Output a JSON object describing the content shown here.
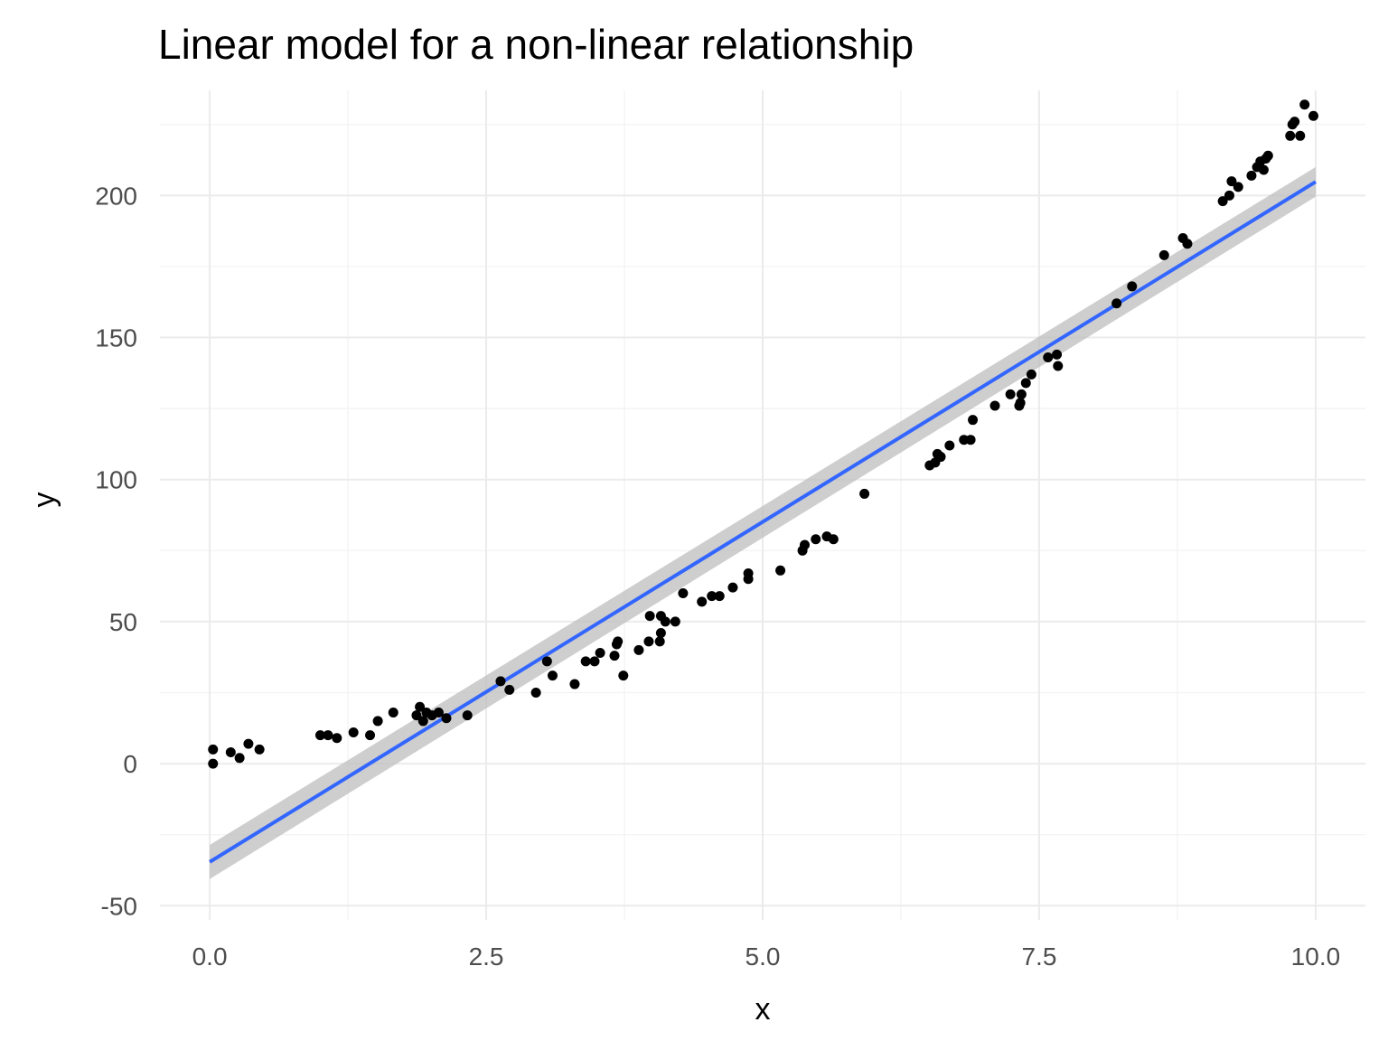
{
  "chart_data": {
    "type": "scatter",
    "title": "Linear model for a non-linear relationship",
    "xlabel": "x",
    "ylabel": "y",
    "xlim": [
      -0.45,
      10.45
    ],
    "ylim": [
      -55,
      237
    ],
    "grid": true,
    "x_ticks": [
      0.0,
      2.5,
      5.0,
      7.5,
      10.0
    ],
    "x_tick_labels": [
      "0.0",
      "2.5",
      "5.0",
      "7.5",
      "10.0"
    ],
    "y_ticks": [
      -50,
      0,
      50,
      100,
      150,
      200
    ],
    "y_tick_labels": [
      "-50",
      "0",
      "50",
      "100",
      "150",
      "200"
    ],
    "colors": {
      "points": "#000000",
      "fit_line": "#3366ff",
      "confidence_band": "#bebebe",
      "grid_major": "#ebebeb",
      "grid_minor": "#f2f2f2"
    },
    "fit": {
      "method": "linear",
      "x": [
        0.0,
        10.0
      ],
      "y": [
        -34.6,
        204.8
      ],
      "ci_lower": [
        -40.6,
        199.6
      ],
      "ci_upper": [
        -28.6,
        210.0
      ]
    },
    "points": {
      "x": [
        0.03,
        0.03,
        0.19,
        0.27,
        0.35,
        0.45,
        1.0,
        1.07,
        1.15,
        1.3,
        1.45,
        1.52,
        1.66,
        1.87,
        1.9,
        1.93,
        1.96,
        2.01,
        2.07,
        2.14,
        2.33,
        2.63,
        2.71,
        2.95,
        3.05,
        3.1,
        3.3,
        3.4,
        3.48,
        3.53,
        3.66,
        3.68,
        3.69,
        3.74,
        3.88,
        3.97,
        3.98,
        4.07,
        4.08,
        4.08,
        4.12,
        4.21,
        4.28,
        4.45,
        4.54,
        4.61,
        4.73,
        4.87,
        4.87,
        5.16,
        5.36,
        5.38,
        5.48,
        5.58,
        5.64,
        5.92,
        6.51,
        6.56,
        6.58,
        6.61,
        6.69,
        6.82,
        6.88,
        6.9,
        7.1,
        7.24,
        7.32,
        7.33,
        7.34,
        7.38,
        7.43,
        7.58,
        7.66,
        7.67,
        8.2,
        8.34,
        8.63,
        8.8,
        8.84,
        9.16,
        9.22,
        9.24,
        9.3,
        9.42,
        9.47,
        9.5,
        9.53,
        9.55,
        9.57,
        9.77,
        9.79,
        9.81,
        9.86,
        9.9,
        9.98
      ],
      "y": [
        0,
        5,
        4,
        2,
        7,
        5,
        10,
        10,
        9,
        11,
        10,
        15,
        18,
        17,
        20,
        15,
        18,
        17,
        18,
        16,
        17,
        29,
        26,
        25,
        36,
        31,
        28,
        36,
        36,
        39,
        38,
        42,
        43,
        31,
        40,
        43,
        52,
        43,
        46,
        52,
        50,
        50,
        60,
        57,
        59,
        59,
        62,
        65,
        67,
        68,
        75,
        77,
        79,
        80,
        79,
        95,
        105,
        106,
        109,
        108,
        112,
        114,
        114,
        121,
        126,
        130,
        126,
        127,
        130,
        134,
        137,
        143,
        144,
        140,
        162,
        168,
        179,
        185,
        183,
        198,
        200,
        205,
        203,
        207,
        210,
        212,
        209,
        213,
        214,
        221,
        225,
        226,
        221,
        232,
        228
      ]
    }
  }
}
